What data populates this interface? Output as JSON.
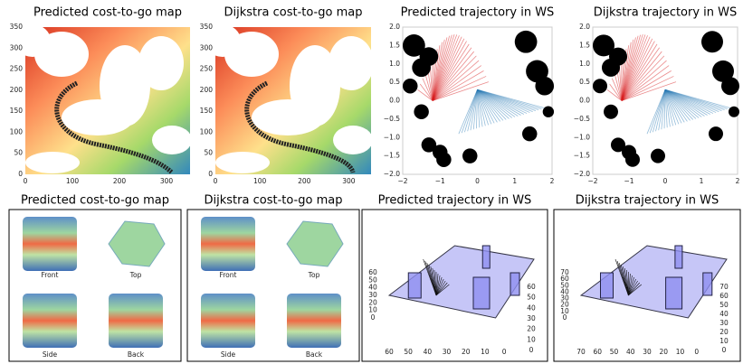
{
  "top_panels": [
    {
      "title": "Predicted cost-to-go map",
      "xticks": [
        "0",
        "100",
        "200",
        "300"
      ],
      "yticks": [
        "0",
        "50",
        "100",
        "150",
        "200",
        "250",
        "300",
        "350"
      ]
    },
    {
      "title": "Dijkstra cost-to-go map",
      "xticks": [
        "0",
        "100",
        "200",
        "300"
      ],
      "yticks": [
        "0",
        "50",
        "100",
        "150",
        "200",
        "250",
        "300",
        "350"
      ]
    },
    {
      "title": "Predicted trajectory in WS",
      "xticks": [
        "−2",
        "−1",
        "0",
        "1",
        "2"
      ],
      "yticks": [
        "−2.0",
        "−1.5",
        "−1.0",
        "−0.5",
        "0.0",
        "0.5",
        "1.0",
        "1.5",
        "2.0"
      ]
    },
    {
      "title": "Dijkstra trajectory in WS",
      "xticks": [
        "−2",
        "−1",
        "0",
        "1",
        "2"
      ],
      "yticks": [
        "−2.0",
        "−1.5",
        "−1.0",
        "−0.5",
        "0.0",
        "0.5",
        "1.0",
        "1.5",
        "2.0"
      ]
    }
  ],
  "bottom_panels": [
    {
      "title": "Predicted cost-to-go map",
      "views": [
        "Front",
        "Top",
        "Side",
        "Back"
      ]
    },
    {
      "title": "Dijkstra cost-to-go map",
      "views": [
        "Front",
        "Top",
        "Side",
        "Back"
      ]
    },
    {
      "title": "Predicted trajectory in WS",
      "x_ticks": [
        "60",
        "50",
        "40",
        "30",
        "20",
        "10",
        "0"
      ],
      "y_ticks": [
        "0",
        "10",
        "20",
        "30",
        "40",
        "50",
        "60"
      ],
      "z_ticks": [
        "0",
        "10",
        "20",
        "30",
        "40",
        "50",
        "60"
      ]
    },
    {
      "title": "Dijkstra trajectory in WS",
      "x_ticks": [
        "70",
        "60",
        "50",
        "40",
        "30",
        "20",
        "10",
        "0"
      ],
      "y_ticks": [
        "0",
        "10",
        "20",
        "30",
        "40",
        "50",
        "60",
        "70"
      ],
      "z_ticks": [
        "0",
        "10",
        "20",
        "30",
        "40",
        "50",
        "60",
        "70"
      ]
    }
  ]
}
